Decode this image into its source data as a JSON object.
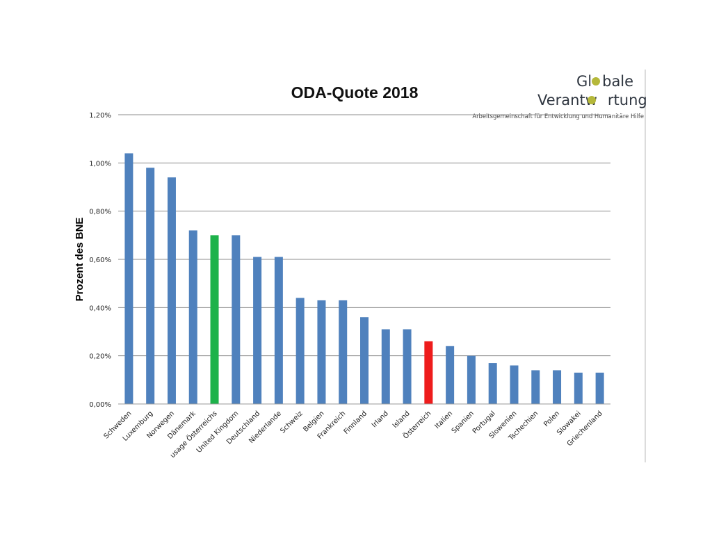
{
  "chart_data": {
    "type": "bar",
    "title": "ODA-Quote 2018",
    "ylabel": "Prozent des BNE",
    "xlabel": "",
    "ylim": [
      0,
      1.2
    ],
    "yticks": [
      0,
      0.2,
      0.4,
      0.6,
      0.8,
      1.0,
      1.2
    ],
    "ytick_labels": [
      "0,00%",
      "0,20%",
      "0,40%",
      "0,60%",
      "0,80%",
      "1,00%",
      "1,20%"
    ],
    "grid": true,
    "categories": [
      "Schweden",
      "Luxemburg",
      "Norwegen",
      "Dänemark",
      "usage Österreichs",
      "United Kingdom",
      "Deutschland",
      "Niederlande",
      "Schweiz",
      "Belgien",
      "Frankreich",
      "Finnland",
      "Irland",
      "Island",
      "Österreich",
      "Italien",
      "Spanien",
      "Portugal",
      "Slowenien",
      "Tschechien",
      "Polen",
      "Slowakei",
      "Griechenland"
    ],
    "values": [
      1.04,
      0.98,
      0.94,
      0.72,
      0.7,
      0.7,
      0.61,
      0.61,
      0.44,
      0.43,
      0.43,
      0.36,
      0.31,
      0.31,
      0.26,
      0.24,
      0.2,
      0.17,
      0.16,
      0.14,
      0.14,
      0.13,
      0.13
    ],
    "bar_colors": {
      "default": "#4f81bd",
      "usage Österreichs": "#1db24a",
      "Österreich": "#ee1c1c"
    }
  },
  "logo": {
    "line1_before": "Gl",
    "line1_after": "bale",
    "line2_before": "Verantw",
    "line2_after": "rtung",
    "dot_color": "#b5b83a",
    "tagline": "Arbeitsgemeinschaft für Entwicklung und Humanitäre Hilfe"
  }
}
